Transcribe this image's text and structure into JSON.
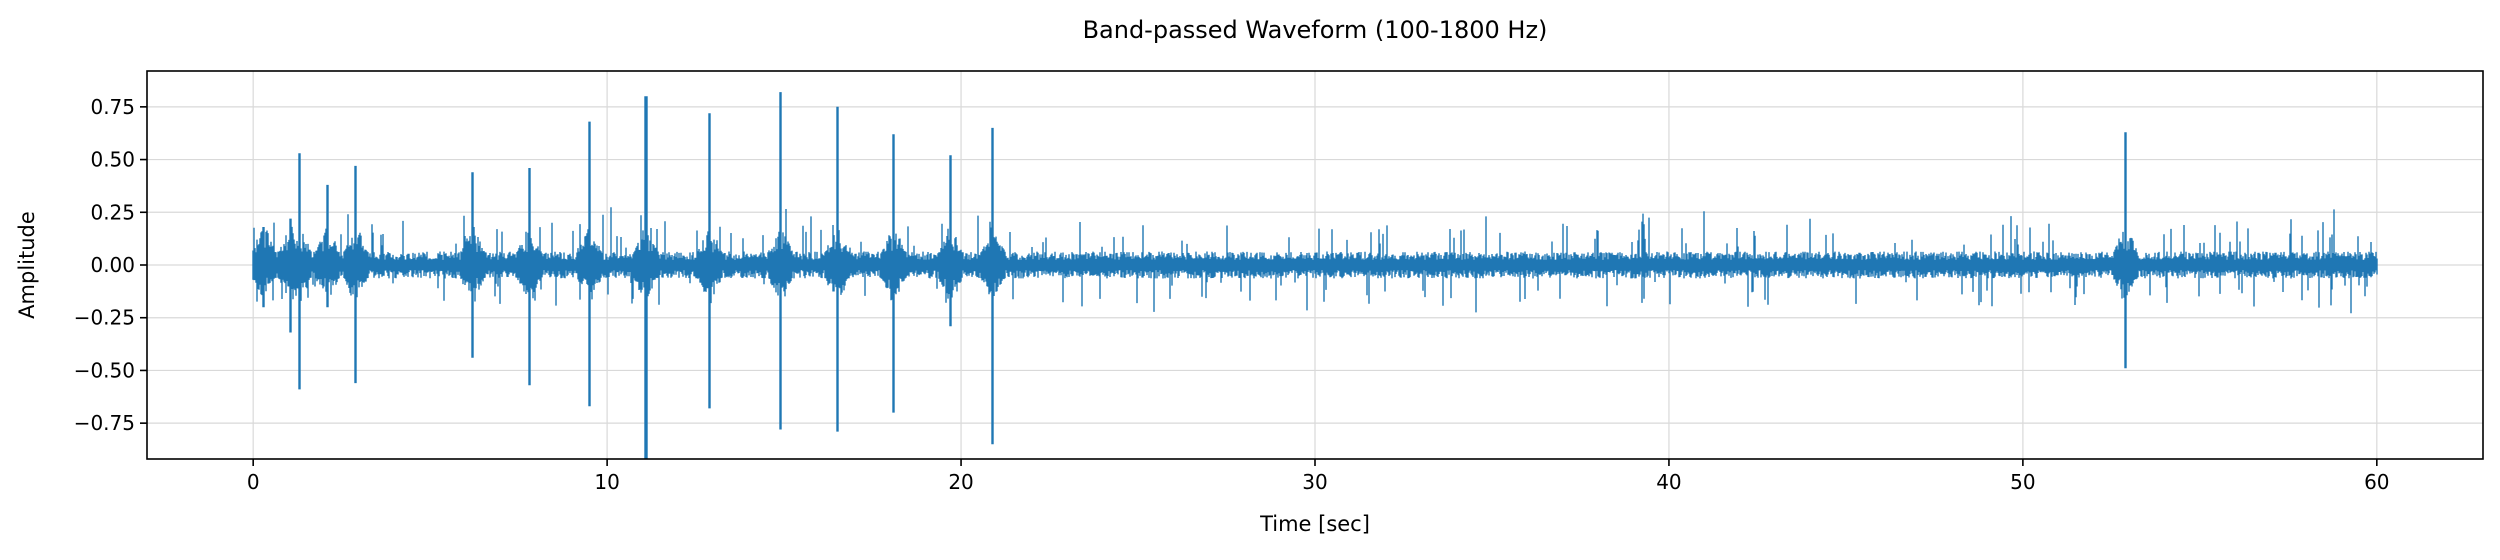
{
  "chart_data": {
    "type": "line",
    "title": "Band-passed Waveform (100-1800 Hz)",
    "xlabel": "Time [sec]",
    "ylabel": "Amplitude",
    "xlim": [
      -3,
      63
    ],
    "ylim": [
      -0.92,
      0.92
    ],
    "x_ticks": [
      0,
      10,
      20,
      30,
      40,
      50,
      60
    ],
    "x_tick_labels": [
      "0",
      "10",
      "20",
      "30",
      "40",
      "50",
      "60"
    ],
    "y_ticks": [
      0.75,
      0.5,
      0.25,
      0.0,
      -0.25,
      -0.5,
      -0.75
    ],
    "y_tick_labels": [
      "0.75",
      "0.50",
      "0.25",
      "0.00",
      "−0.25",
      "−0.50",
      "−0.75"
    ],
    "grid": true,
    "legend": "none",
    "series_color": "#1f77b4",
    "duration_sec": 60,
    "baseline_noise_amplitude": 0.04,
    "spikes": [
      {
        "t": 0.3,
        "max": 0.18,
        "min": -0.2
      },
      {
        "t": 1.05,
        "max": 0.22,
        "min": -0.32
      },
      {
        "t": 1.3,
        "max": 0.53,
        "min": -0.59
      },
      {
        "t": 2.1,
        "max": 0.38,
        "min": -0.2
      },
      {
        "t": 2.9,
        "max": 0.47,
        "min": -0.56
      },
      {
        "t": 6.2,
        "max": 0.44,
        "min": -0.44
      },
      {
        "t": 7.8,
        "max": 0.46,
        "min": -0.57
      },
      {
        "t": 9.5,
        "max": 0.68,
        "min": -0.67
      },
      {
        "t": 11.1,
        "max": 0.8,
        "min": -0.92
      },
      {
        "t": 12.9,
        "max": 0.72,
        "min": -0.68
      },
      {
        "t": 14.9,
        "max": 0.82,
        "min": -0.78
      },
      {
        "t": 16.5,
        "max": 0.75,
        "min": -0.79
      },
      {
        "t": 18.1,
        "max": 0.62,
        "min": -0.7
      },
      {
        "t": 19.7,
        "max": 0.52,
        "min": -0.29
      },
      {
        "t": 20.9,
        "max": 0.65,
        "min": -0.85
      },
      {
        "t": 52.9,
        "max": 0.63,
        "min": -0.49
      }
    ]
  }
}
